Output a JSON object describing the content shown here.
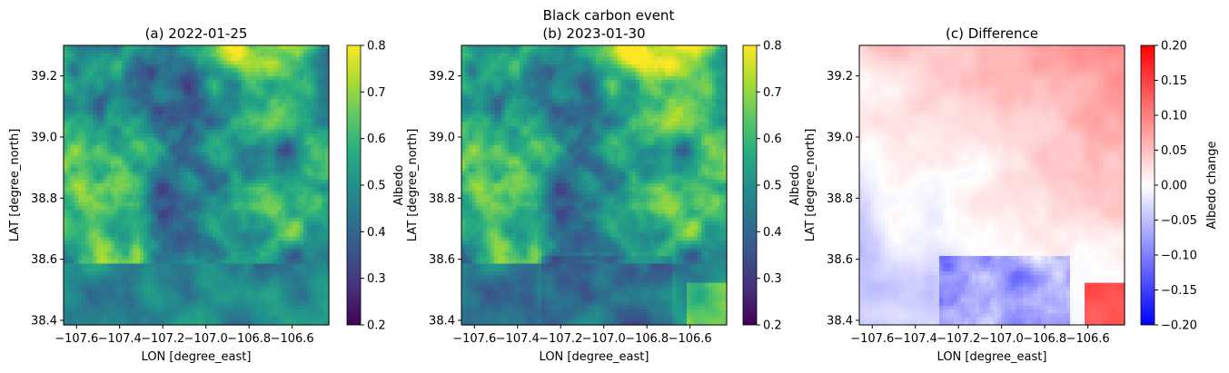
{
  "figure": {
    "suptitle": "Black carbon event"
  },
  "chart_data": [
    {
      "type": "heatmap",
      "title": "(a) 2022-01-25",
      "xlabel": "LON [degree_east]",
      "ylabel": "LAT [degree_north]",
      "xlim": [
        -107.66,
        -106.43
      ],
      "ylim": [
        38.385,
        39.3
      ],
      "xticks": [
        -107.6,
        -107.4,
        -107.2,
        -107.0,
        -106.8,
        -106.6
      ],
      "xtick_labels": [
        "−107.6",
        "−107.4",
        "−107.2",
        "−107.0",
        "−106.8",
        "−106.6"
      ],
      "yticks": [
        38.4,
        38.6,
        38.8,
        39.0,
        39.2
      ],
      "ytick_labels": [
        "38.4",
        "38.6",
        "38.8",
        "39.0",
        "39.2"
      ],
      "colormap": "viridis",
      "colorbar": {
        "label": "Albedo",
        "range": [
          0.2,
          0.8
        ],
        "ticks": [
          0.2,
          0.3,
          0.4,
          0.5,
          0.6,
          0.7,
          0.8
        ],
        "tick_labels": [
          "0.2",
          "0.3",
          "0.4",
          "0.5",
          "0.6",
          "0.7",
          "0.8"
        ]
      },
      "grid": false
    },
    {
      "type": "heatmap",
      "title": "(b) 2023-01-30",
      "xlabel": "LON [degree_east]",
      "ylabel": "LAT [degree_north]",
      "xlim": [
        -107.66,
        -106.43
      ],
      "ylim": [
        38.385,
        39.3
      ],
      "xticks": [
        -107.6,
        -107.4,
        -107.2,
        -107.0,
        -106.8,
        -106.6
      ],
      "xtick_labels": [
        "−107.6",
        "−107.4",
        "−107.2",
        "−107.0",
        "−106.8",
        "−106.6"
      ],
      "yticks": [
        38.4,
        38.6,
        38.8,
        39.0,
        39.2
      ],
      "ytick_labels": [
        "38.4",
        "38.6",
        "38.8",
        "39.0",
        "39.2"
      ],
      "colormap": "viridis",
      "colorbar": {
        "label": "Albedo",
        "range": [
          0.2,
          0.8
        ],
        "ticks": [
          0.2,
          0.3,
          0.4,
          0.5,
          0.6,
          0.7,
          0.8
        ],
        "tick_labels": [
          "0.2",
          "0.3",
          "0.4",
          "0.5",
          "0.6",
          "0.7",
          "0.8"
        ]
      },
      "grid": false
    },
    {
      "type": "heatmap",
      "title": "(c) Difference",
      "xlabel": "LON [degree_east]",
      "ylabel": "LAT [degree_north]",
      "xlim": [
        -107.66,
        -106.43
      ],
      "ylim": [
        38.385,
        39.3
      ],
      "xticks": [
        -107.6,
        -107.4,
        -107.2,
        -107.0,
        -106.8,
        -106.6
      ],
      "xtick_labels": [
        "−107.6",
        "−107.4",
        "−107.2",
        "−107.0",
        "−106.8",
        "−106.6"
      ],
      "yticks": [
        38.4,
        38.6,
        38.8,
        39.0,
        39.2
      ],
      "ytick_labels": [
        "38.4",
        "38.6",
        "38.8",
        "39.0",
        "39.2"
      ],
      "colormap": "bwr",
      "colorbar": {
        "label": "Albedo change",
        "range": [
          -0.2,
          0.2
        ],
        "ticks": [
          -0.2,
          -0.15,
          -0.1,
          -0.05,
          0.0,
          0.05,
          0.1,
          0.15,
          0.2
        ],
        "tick_labels": [
          "−0.20",
          "−0.15",
          "−0.10",
          "−0.05",
          "0.00",
          "0.05",
          "0.10",
          "0.15",
          "0.20"
        ]
      },
      "grid": false
    }
  ]
}
